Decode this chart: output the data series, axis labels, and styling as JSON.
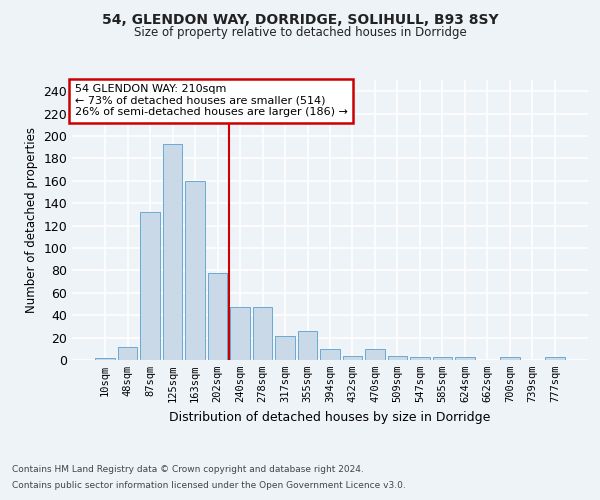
{
  "title1": "54, GLENDON WAY, DORRIDGE, SOLIHULL, B93 8SY",
  "title2": "Size of property relative to detached houses in Dorridge",
  "xlabel": "Distribution of detached houses by size in Dorridge",
  "ylabel": "Number of detached properties",
  "categories": [
    "10sqm",
    "48sqm",
    "87sqm",
    "125sqm",
    "163sqm",
    "202sqm",
    "240sqm",
    "278sqm",
    "317sqm",
    "355sqm",
    "394sqm",
    "432sqm",
    "470sqm",
    "509sqm",
    "547sqm",
    "585sqm",
    "624sqm",
    "662sqm",
    "700sqm",
    "739sqm",
    "777sqm"
  ],
  "values": [
    2,
    12,
    132,
    193,
    160,
    78,
    47,
    47,
    21,
    26,
    10,
    4,
    10,
    4,
    3,
    3,
    3,
    0,
    3,
    0,
    3
  ],
  "bar_color": "#c9d9e8",
  "bar_edge_color": "#6aaad4",
  "vline_x": 5.5,
  "vline_color": "#cc0000",
  "annotation_title": "54 GLENDON WAY: 210sqm",
  "annotation_line1": "← 73% of detached houses are smaller (514)",
  "annotation_line2": "26% of semi-detached houses are larger (186) →",
  "annotation_box_color": "#cc0000",
  "ylim": [
    0,
    250
  ],
  "yticks": [
    0,
    20,
    40,
    60,
    80,
    100,
    120,
    140,
    160,
    180,
    200,
    220,
    240
  ],
  "footer1": "Contains HM Land Registry data © Crown copyright and database right 2024.",
  "footer2": "Contains public sector information licensed under the Open Government Licence v3.0.",
  "bg_color": "#eef3f8",
  "grid_color": "#ffffff"
}
